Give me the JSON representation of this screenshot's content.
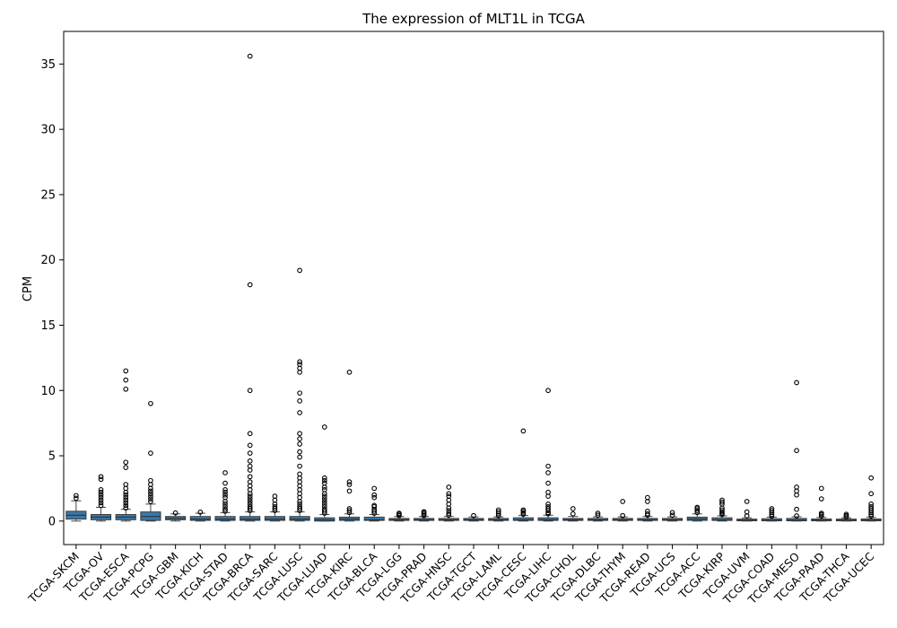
{
  "chart_data": {
    "type": "box",
    "title": "The expression of MLT1L in TCGA",
    "ylabel": "CPM",
    "xlabel": "",
    "ylim": [
      -1.8,
      37.5
    ],
    "yticks": [
      0,
      5,
      10,
      15,
      20,
      25,
      30,
      35
    ],
    "grid": false,
    "box_color": "#3a78a8",
    "categories": [
      "TCGA-SKCM",
      "TCGA-OV",
      "TCGA-ESCA",
      "TCGA-PCPG",
      "TCGA-GBM",
      "TCGA-KICH",
      "TCGA-STAD",
      "TCGA-BRCA",
      "TCGA-SARC",
      "TCGA-LUSC",
      "TCGA-LUAD",
      "TCGA-KIRC",
      "TCGA-BLCA",
      "TCGA-LGG",
      "TCGA-PRAD",
      "TCGA-HNSC",
      "TCGA-TGCT",
      "TCGA-LAML",
      "TCGA-CESC",
      "TCGA-LIHC",
      "TCGA-CHOL",
      "TCGA-DLBC",
      "TCGA-THYM",
      "TCGA-READ",
      "TCGA-UCS",
      "TCGA-ACC",
      "TCGA-KIRP",
      "TCGA-UVM",
      "TCGA-COAD",
      "TCGA-MESO",
      "TCGA-PAAD",
      "TCGA-THCA",
      "TCGA-UCEC"
    ],
    "boxes": [
      {
        "whislo": 0.0,
        "q1": 0.15,
        "med": 0.45,
        "q3": 0.75,
        "whishi": 1.55,
        "fliers": [
          1.75,
          1.95
        ]
      },
      {
        "whislo": 0.0,
        "q1": 0.1,
        "med": 0.3,
        "q3": 0.5,
        "whishi": 1.05,
        "fliers": [
          1.2,
          1.4,
          1.6,
          1.8,
          2.0,
          2.2,
          2.4,
          3.2,
          3.4
        ]
      },
      {
        "whislo": 0.0,
        "q1": 0.1,
        "med": 0.3,
        "q3": 0.5,
        "whishi": 0.9,
        "fliers": [
          1.0,
          1.2,
          1.4,
          1.6,
          1.8,
          2.0,
          2.2,
          2.5,
          2.8,
          4.1,
          4.5,
          10.1,
          10.8,
          11.5
        ]
      },
      {
        "whislo": 0.0,
        "q1": 0.05,
        "med": 0.35,
        "q3": 0.7,
        "whishi": 1.3,
        "fliers": [
          1.5,
          1.7,
          1.9,
          2.1,
          2.3,
          2.5,
          2.8,
          3.1,
          5.2,
          9.0
        ]
      },
      {
        "whislo": 0.0,
        "q1": 0.1,
        "med": 0.2,
        "q3": 0.35,
        "whishi": 0.55,
        "fliers": [
          0.62
        ]
      },
      {
        "whislo": 0.0,
        "q1": 0.05,
        "med": 0.15,
        "q3": 0.35,
        "whishi": 0.6,
        "fliers": [
          0.68
        ]
      },
      {
        "whislo": 0.0,
        "q1": 0.05,
        "med": 0.15,
        "q3": 0.35,
        "whishi": 0.65,
        "fliers": [
          0.75,
          0.9,
          1.1,
          1.3,
          1.5,
          1.8,
          2.0,
          2.2,
          2.4,
          2.9,
          3.7
        ]
      },
      {
        "whislo": 0.0,
        "q1": 0.05,
        "med": 0.15,
        "q3": 0.35,
        "whishi": 0.7,
        "fliers": [
          0.8,
          0.95,
          1.1,
          1.3,
          1.5,
          1.7,
          1.9,
          2.1,
          2.4,
          2.7,
          3.0,
          3.4,
          3.9,
          4.2,
          4.6,
          5.2,
          5.8,
          6.7,
          10.0,
          18.1,
          35.6
        ]
      },
      {
        "whislo": 0.0,
        "q1": 0.05,
        "med": 0.15,
        "q3": 0.35,
        "whishi": 0.7,
        "fliers": [
          0.8,
          0.95,
          1.1,
          1.3,
          1.6,
          1.9
        ]
      },
      {
        "whislo": 0.0,
        "q1": 0.05,
        "med": 0.15,
        "q3": 0.35,
        "whishi": 0.7,
        "fliers": [
          0.8,
          0.95,
          1.1,
          1.3,
          1.5,
          1.8,
          2.1,
          2.4,
          2.7,
          3.0,
          3.3,
          3.6,
          4.2,
          4.9,
          5.3,
          5.9,
          6.3,
          6.7,
          8.3,
          9.2,
          9.8,
          11.4,
          11.7,
          12.0,
          12.2,
          19.2
        ]
      },
      {
        "whislo": 0.0,
        "q1": 0.0,
        "med": 0.1,
        "q3": 0.25,
        "whishi": 0.5,
        "fliers": [
          0.6,
          0.75,
          0.9,
          1.1,
          1.3,
          1.5,
          1.7,
          1.9,
          2.1,
          2.4,
          2.6,
          2.9,
          3.1,
          3.3,
          7.2
        ]
      },
      {
        "whislo": 0.0,
        "q1": 0.05,
        "med": 0.15,
        "q3": 0.3,
        "whishi": 0.55,
        "fliers": [
          0.65,
          0.8,
          0.95,
          2.3,
          2.8,
          3.0,
          11.4
        ]
      },
      {
        "whislo": 0.0,
        "q1": 0.05,
        "med": 0.1,
        "q3": 0.3,
        "whishi": 0.5,
        "fliers": [
          0.6,
          0.75,
          0.9,
          1.1,
          1.2,
          1.8,
          2.0,
          2.5
        ]
      },
      {
        "whislo": 0.0,
        "q1": 0.05,
        "med": 0.1,
        "q3": 0.2,
        "whishi": 0.35,
        "fliers": [
          0.42,
          0.52,
          0.6
        ]
      },
      {
        "whislo": 0.0,
        "q1": 0.05,
        "med": 0.1,
        "q3": 0.2,
        "whishi": 0.35,
        "fliers": [
          0.42,
          0.52,
          0.62,
          0.72
        ]
      },
      {
        "whislo": 0.0,
        "q1": 0.05,
        "med": 0.1,
        "q3": 0.2,
        "whishi": 0.35,
        "fliers": [
          0.45,
          0.6,
          0.8,
          1.0,
          1.3,
          1.6,
          1.9,
          2.1,
          2.6
        ]
      },
      {
        "whislo": 0.0,
        "q1": 0.05,
        "med": 0.1,
        "q3": 0.2,
        "whishi": 0.32,
        "fliers": [
          0.42
        ]
      },
      {
        "whislo": 0.0,
        "q1": 0.05,
        "med": 0.1,
        "q3": 0.2,
        "whishi": 0.32,
        "fliers": [
          0.42,
          0.55,
          0.7,
          0.85
        ]
      },
      {
        "whislo": 0.0,
        "q1": 0.05,
        "med": 0.1,
        "q3": 0.25,
        "whishi": 0.42,
        "fliers": [
          0.52,
          0.62,
          0.75,
          0.85,
          6.9
        ]
      },
      {
        "whislo": 0.0,
        "q1": 0.05,
        "med": 0.1,
        "q3": 0.25,
        "whishi": 0.45,
        "fliers": [
          0.55,
          0.65,
          0.8,
          0.95,
          1.1,
          1.3,
          1.9,
          2.2,
          2.9,
          3.7,
          4.2,
          10.0
        ]
      },
      {
        "whislo": 0.0,
        "q1": 0.05,
        "med": 0.1,
        "q3": 0.2,
        "whishi": 0.35,
        "fliers": [
          0.55,
          0.95
        ]
      },
      {
        "whislo": 0.0,
        "q1": 0.05,
        "med": 0.1,
        "q3": 0.2,
        "whishi": 0.32,
        "fliers": [
          0.45,
          0.6
        ]
      },
      {
        "whislo": 0.0,
        "q1": 0.05,
        "med": 0.1,
        "q3": 0.2,
        "whishi": 0.32,
        "fliers": [
          0.42,
          1.5
        ]
      },
      {
        "whislo": 0.0,
        "q1": 0.05,
        "med": 0.1,
        "q3": 0.2,
        "whishi": 0.35,
        "fliers": [
          0.45,
          0.55,
          0.75,
          1.5,
          1.8
        ]
      },
      {
        "whislo": 0.0,
        "q1": 0.05,
        "med": 0.1,
        "q3": 0.2,
        "whishi": 0.32,
        "fliers": [
          0.45,
          0.65
        ]
      },
      {
        "whislo": 0.0,
        "q1": 0.05,
        "med": 0.15,
        "q3": 0.3,
        "whishi": 0.55,
        "fliers": [
          0.65,
          0.8,
          0.95,
          1.05
        ]
      },
      {
        "whislo": 0.0,
        "q1": 0.05,
        "med": 0.1,
        "q3": 0.25,
        "whishi": 0.4,
        "fliers": [
          0.5,
          0.6,
          0.7,
          0.85,
          1.0,
          1.3,
          1.45,
          1.6
        ]
      },
      {
        "whislo": 0.0,
        "q1": 0.02,
        "med": 0.06,
        "q3": 0.15,
        "whishi": 0.25,
        "fliers": [
          0.4,
          0.7,
          1.5
        ]
      },
      {
        "whislo": 0.0,
        "q1": 0.02,
        "med": 0.06,
        "q3": 0.18,
        "whishi": 0.3,
        "fliers": [
          0.38,
          0.5,
          0.65,
          0.8,
          0.95
        ]
      },
      {
        "whislo": 0.0,
        "q1": 0.02,
        "med": 0.07,
        "q3": 0.2,
        "whishi": 0.33,
        "fliers": [
          0.4,
          0.9,
          2.0,
          2.3,
          2.6,
          5.4,
          10.6
        ]
      },
      {
        "whislo": 0.0,
        "q1": 0.02,
        "med": 0.06,
        "q3": 0.16,
        "whishi": 0.28,
        "fliers": [
          0.38,
          0.5,
          0.6,
          1.7,
          2.5
        ]
      },
      {
        "whislo": 0.0,
        "q1": 0.02,
        "med": 0.06,
        "q3": 0.15,
        "whishi": 0.25,
        "fliers": [
          0.32,
          0.42,
          0.52
        ]
      },
      {
        "whislo": 0.0,
        "q1": 0.02,
        "med": 0.06,
        "q3": 0.16,
        "whishi": 0.28,
        "fliers": [
          0.38,
          0.5,
          0.65,
          0.8,
          0.95,
          1.1,
          1.3,
          2.1,
          3.3
        ]
      }
    ]
  }
}
